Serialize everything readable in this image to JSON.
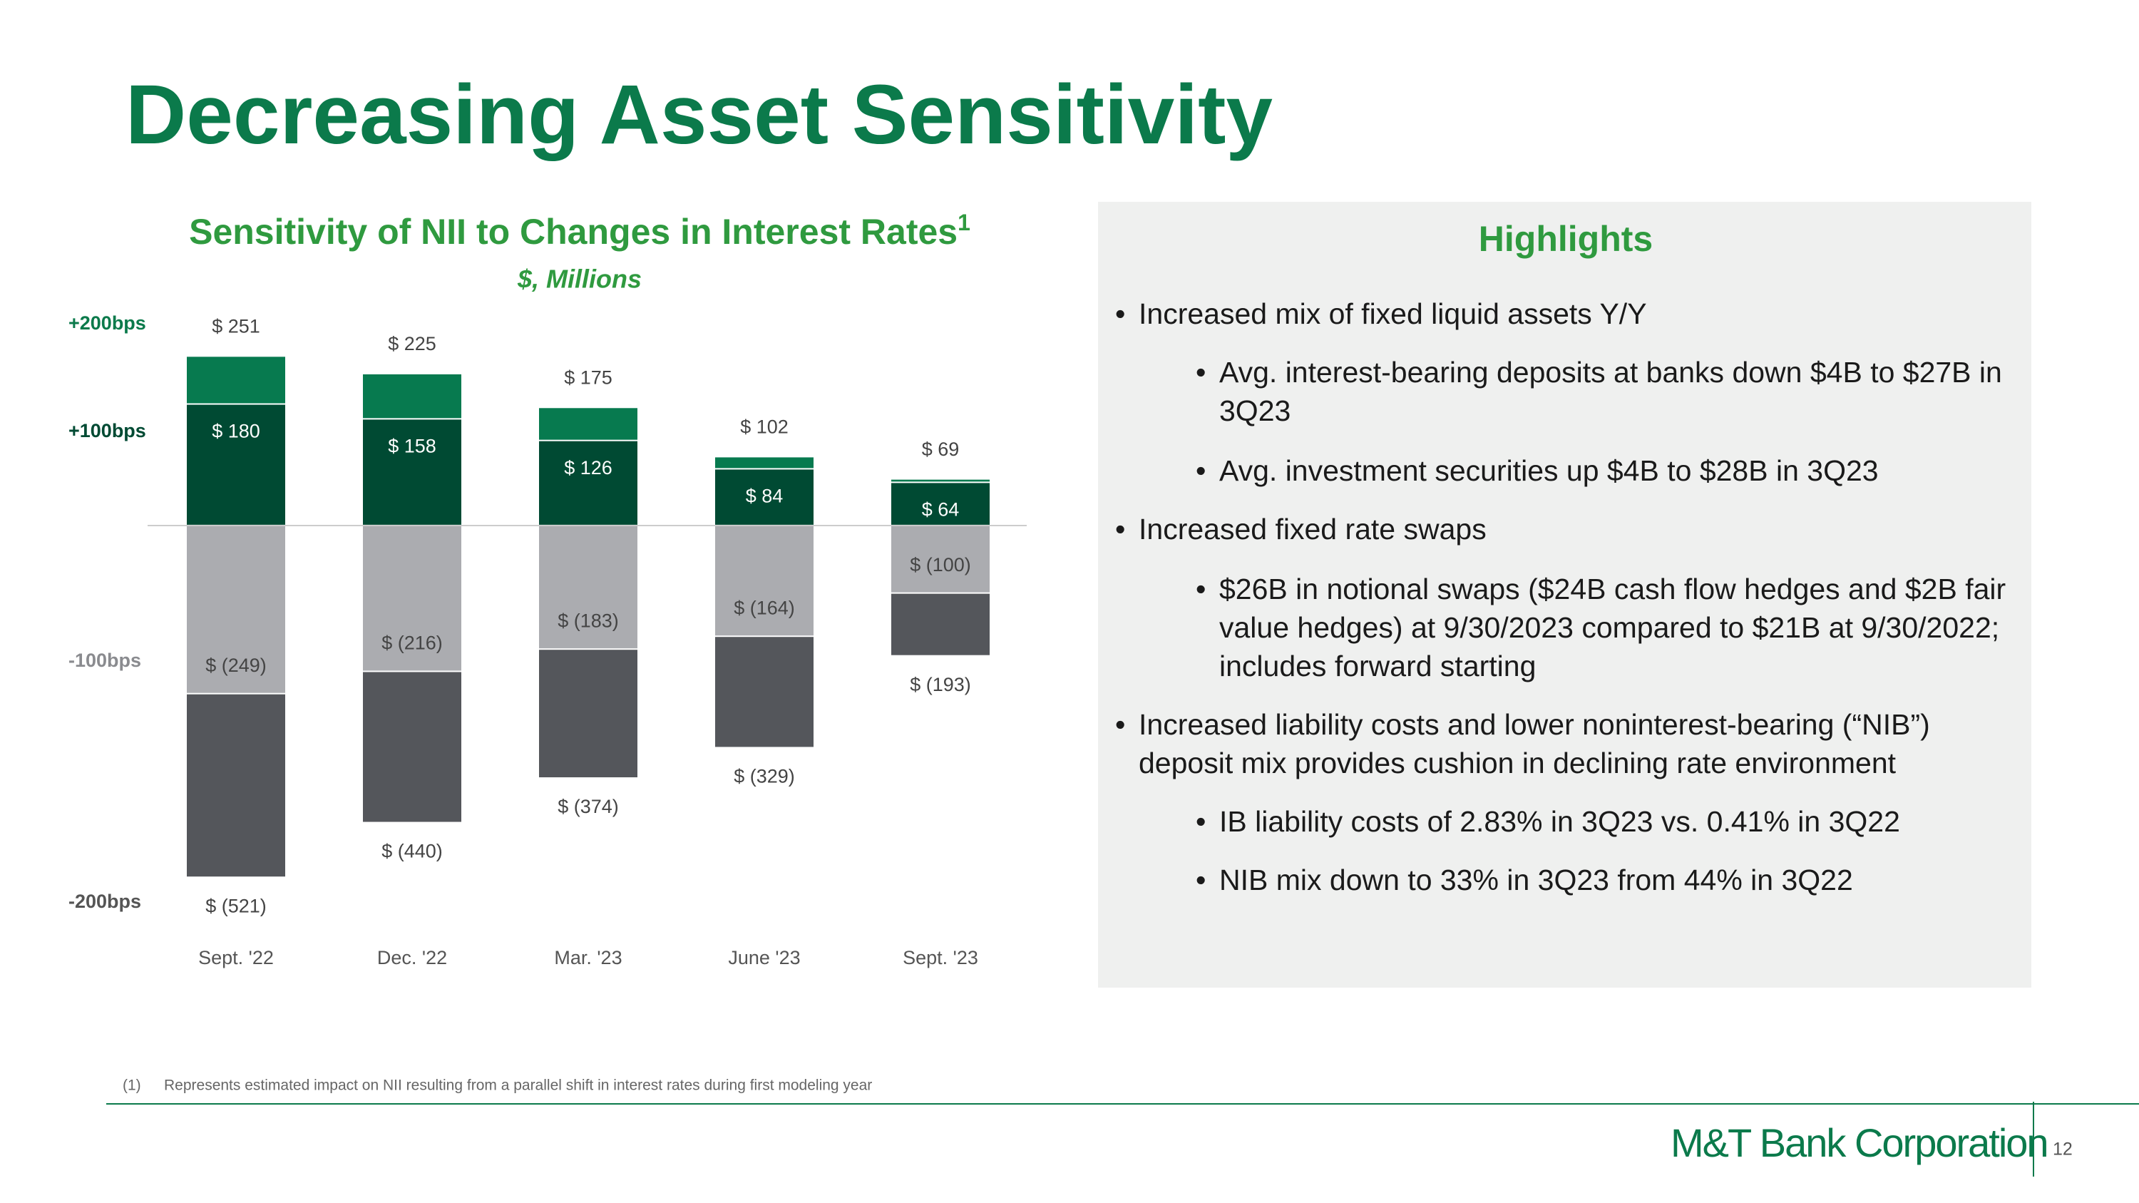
{
  "slide_title": "Decreasing Asset Sensitivity",
  "chart_data": {
    "type": "bar",
    "title": "Sensitivity of NII to Changes in Interest Rates",
    "title_sup": "1",
    "subtitle": "$, Millions",
    "categories": [
      "Sept. '22",
      "Dec. '22",
      "Mar. '23",
      "June '23",
      "Sept. '23"
    ],
    "series": [
      {
        "name": "+200bps",
        "color": "#077a4f",
        "values": [
          251,
          225,
          175,
          102,
          69
        ],
        "value_labels": [
          "$ 251",
          "$ 225",
          "$ 175",
          "$ 102",
          "$ 69"
        ]
      },
      {
        "name": "+100bps",
        "color": "#004a33",
        "values": [
          180,
          158,
          126,
          84,
          64
        ],
        "value_labels": [
          "$ 180",
          "$ 158",
          "$ 126",
          "$ 84",
          "$ 64"
        ]
      },
      {
        "name": "-100bps",
        "color": "#abacb0",
        "values": [
          -249,
          -216,
          -183,
          -164,
          -100
        ],
        "value_labels": [
          "$ (249)",
          "$ (216)",
          "$ (183)",
          "$ (164)",
          "$ (100)"
        ]
      },
      {
        "name": "-200bps",
        "color": "#54565b",
        "values": [
          -521,
          -440,
          -374,
          -329,
          -193
        ],
        "value_labels": [
          "$ (521)",
          "$ (440)",
          "$ (374)",
          "$ (329)",
          "$ (193)"
        ]
      }
    ],
    "ylim": [
      -600,
      320
    ]
  },
  "highlights": {
    "title": "Highlights",
    "items": [
      {
        "level": 1,
        "text": "Increased mix of fixed liquid assets Y/Y"
      },
      {
        "level": 2,
        "text": "Avg. interest-bearing deposits at banks down $4B to $27B in 3Q23"
      },
      {
        "level": 2,
        "text": "Avg. investment securities up $4B to $28B in 3Q23"
      },
      {
        "level": 1,
        "text": "Increased fixed rate swaps"
      },
      {
        "level": 2,
        "text": "$26B in notional swaps ($24B cash flow hedges and $2B fair value hedges) at 9/30/2023 compared to $21B at 9/30/2022; includes forward starting"
      },
      {
        "level": 1,
        "text": "Increased liability costs and lower noninterest-bearing (“NIB”) deposit mix provides cushion in declining rate environment"
      },
      {
        "level": 2,
        "text": "IB liability costs of 2.83% in 3Q23 vs. 0.41% in 3Q22"
      },
      {
        "level": 2,
        "text": "NIB mix down to 33% in 3Q23 from 44% in 3Q22"
      }
    ]
  },
  "footnote": {
    "marker": "(1)",
    "text": "Represents estimated impact on NII resulting from a parallel shift in interest rates during first modeling year"
  },
  "logo": "M&T Bank Corporation",
  "page_number": "12"
}
